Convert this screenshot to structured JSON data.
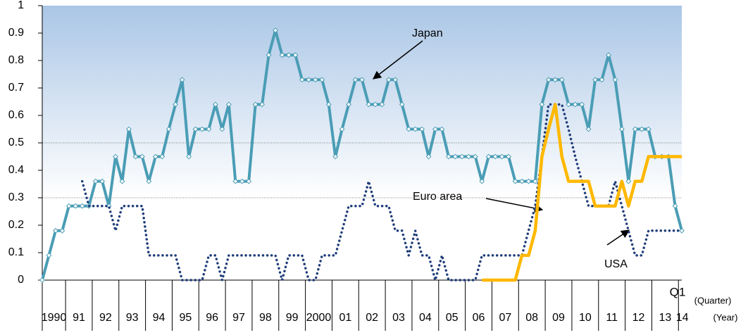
{
  "chart_data": {
    "type": "line",
    "categories": [
      "1990",
      null,
      null,
      null,
      "91",
      null,
      null,
      null,
      "92",
      null,
      null,
      null,
      "93",
      null,
      null,
      null,
      "94",
      null,
      null,
      null,
      "95",
      null,
      null,
      null,
      "96",
      null,
      null,
      null,
      "97",
      null,
      null,
      null,
      "98",
      null,
      null,
      null,
      "99",
      null,
      null,
      null,
      "2000",
      null,
      null,
      null,
      "01",
      null,
      null,
      null,
      "02",
      null,
      null,
      null,
      "03",
      null,
      null,
      null,
      "04",
      null,
      null,
      null,
      "05",
      null,
      null,
      null,
      "06",
      null,
      null,
      null,
      "07",
      null,
      null,
      null,
      "08",
      null,
      null,
      null,
      "09",
      null,
      null,
      null,
      "10",
      null,
      null,
      null,
      "11",
      null,
      null,
      null,
      "12",
      null,
      null,
      null,
      "13",
      null,
      null,
      null,
      "14"
    ],
    "quarter_label": "Q1",
    "x_axis_labels": [
      "(Quarter)",
      "(Year)"
    ],
    "series": [
      {
        "name": "Japan",
        "color": "#4a9db5",
        "style": "solid-markers",
        "values": [
          0,
          0.09,
          0.18,
          0.18,
          0.27,
          0.27,
          0.27,
          0.27,
          0.36,
          0.36,
          0.27,
          0.45,
          0.36,
          0.55,
          0.45,
          0.45,
          0.36,
          0.45,
          0.45,
          0.55,
          0.64,
          0.73,
          0.45,
          0.55,
          0.55,
          0.55,
          0.64,
          0.55,
          0.64,
          0.36,
          0.36,
          0.36,
          0.64,
          0.64,
          0.82,
          0.91,
          0.82,
          0.82,
          0.82,
          0.73,
          0.73,
          0.73,
          0.73,
          0.64,
          0.45,
          0.55,
          0.64,
          0.73,
          0.73,
          0.64,
          0.64,
          0.64,
          0.73,
          0.73,
          0.64,
          0.55,
          0.55,
          0.55,
          0.45,
          0.55,
          0.55,
          0.45,
          0.45,
          0.45,
          0.45,
          0.45,
          0.36,
          0.45,
          0.45,
          0.45,
          0.45,
          0.36,
          0.36,
          0.36,
          0.36,
          0.64,
          0.73,
          0.73,
          0.73,
          0.64,
          0.64,
          0.64,
          0.55,
          0.73,
          0.73,
          0.82,
          0.73,
          0.55,
          0.36,
          0.55,
          0.55,
          0.55,
          0.45,
          0.45,
          0.45,
          0.27,
          0.18
        ]
      },
      {
        "name": "USA",
        "color": "#1f3d7a",
        "style": "dotted",
        "values": [
          null,
          null,
          null,
          null,
          null,
          null,
          0.36,
          0.27,
          0.27,
          0.27,
          0.27,
          0.18,
          0.27,
          0.27,
          0.27,
          0.27,
          0.09,
          0.09,
          0.09,
          0.09,
          0.09,
          0,
          0,
          0,
          0,
          0.09,
          0.09,
          0,
          0.09,
          0.09,
          0.09,
          0.09,
          0.09,
          0.09,
          0.09,
          0.09,
          0,
          0.09,
          0.09,
          0.09,
          0,
          0,
          0.09,
          0.09,
          0.09,
          0.18,
          0.27,
          0.27,
          0.27,
          0.36,
          0.27,
          0.27,
          0.27,
          0.18,
          0.18,
          0.09,
          0.18,
          0.09,
          0.09,
          0,
          0.09,
          0,
          0,
          0,
          0,
          0,
          0.09,
          0.09,
          0.09,
          0.09,
          0.09,
          0.09,
          0.09,
          0.18,
          0.27,
          0.45,
          0.64,
          0.64,
          0.64,
          0.55,
          0.45,
          0.36,
          0.27,
          0.27,
          0.27,
          0.27,
          0.36,
          0.27,
          0.18,
          0.09,
          0.09,
          0.18,
          0.18,
          0.18,
          0.18,
          0.18,
          0.18
        ]
      },
      {
        "name": "Euro area",
        "color": "#ffb800",
        "style": "solid",
        "values": [
          null,
          null,
          null,
          null,
          null,
          null,
          null,
          null,
          null,
          null,
          null,
          null,
          null,
          null,
          null,
          null,
          null,
          null,
          null,
          null,
          null,
          null,
          null,
          null,
          null,
          null,
          null,
          null,
          null,
          null,
          null,
          null,
          null,
          null,
          null,
          null,
          null,
          null,
          null,
          null,
          null,
          null,
          null,
          null,
          null,
          null,
          null,
          null,
          null,
          null,
          null,
          null,
          null,
          null,
          null,
          null,
          null,
          null,
          null,
          null,
          null,
          null,
          null,
          null,
          null,
          null,
          0,
          0,
          0,
          0,
          0,
          0,
          0.09,
          0.09,
          0.18,
          0.45,
          0.55,
          0.64,
          0.45,
          0.36,
          0.36,
          0.36,
          0.36,
          0.27,
          0.27,
          0.27,
          0.27,
          0.36,
          0.27,
          0.36,
          0.36,
          0.45,
          0.45,
          0.45,
          0.45,
          0.45,
          0.45
        ]
      }
    ],
    "ylim": [
      0,
      1
    ],
    "yticks": [
      0,
      0.1,
      0.2,
      0.3,
      0.4,
      0.5,
      0.6,
      0.7,
      0.8,
      0.9,
      1
    ],
    "gridlines": [
      0.3,
      0.5
    ],
    "background": [
      "#aac6e6",
      "#ffffff"
    ]
  }
}
